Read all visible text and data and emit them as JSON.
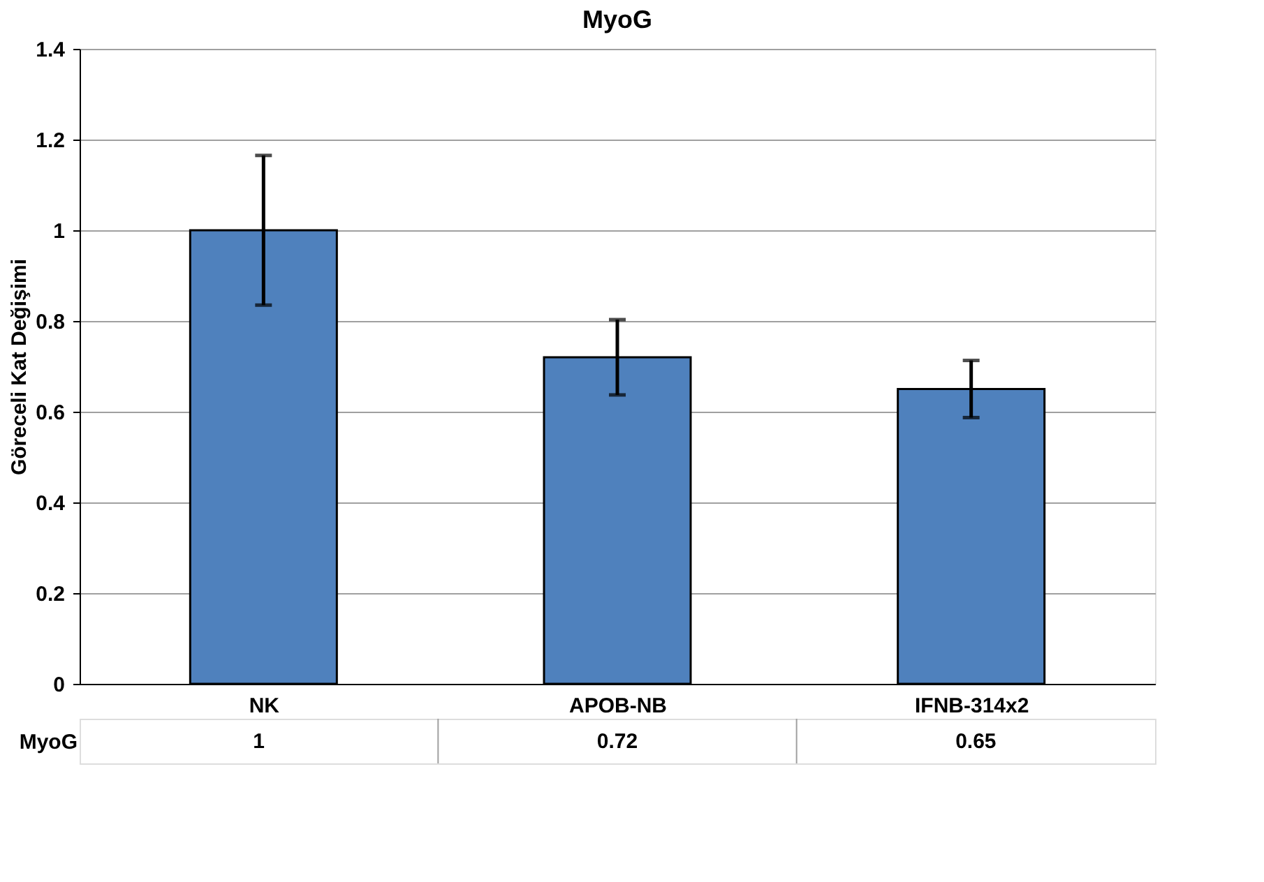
{
  "chart_data": {
    "type": "bar",
    "title": "MyoG",
    "ylabel": "Göreceli Kat Değişimi",
    "categories": [
      "NK",
      "APOB-NB",
      "IFNB-314x2"
    ],
    "series": [
      {
        "name": "MyoG",
        "color": "#4f81bd",
        "values": [
          1,
          0.72,
          0.65
        ],
        "errors": [
          0.165,
          0.083,
          0.063
        ]
      }
    ],
    "ylim": [
      0,
      1.4
    ],
    "yticks": [
      0,
      0.2,
      0.4,
      0.6,
      0.8,
      1,
      1.2,
      1.4
    ],
    "grid": "y",
    "data_labels": true
  }
}
